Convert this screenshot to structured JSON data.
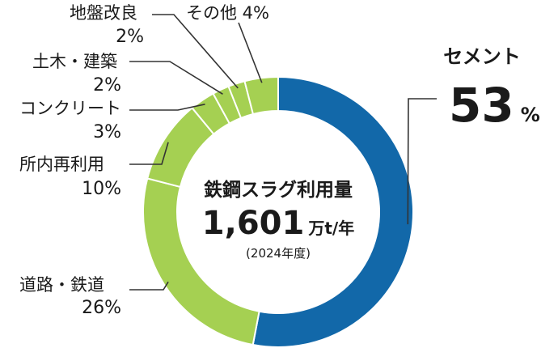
{
  "chart_data": {
    "type": "pie",
    "variant": "donut",
    "categories": [
      "セメント",
      "道路・鉄道",
      "所内再利用",
      "コンクリート",
      "土木・建築",
      "地盤改良",
      "その他"
    ],
    "values": [
      53,
      26,
      10,
      3,
      2,
      2,
      4
    ],
    "value_suffix": "%",
    "slice_colors": [
      "#1268a9",
      "#a5d052",
      "#a5d052",
      "#a5d052",
      "#a5d052",
      "#a5d052",
      "#a5d052"
    ],
    "center": {
      "title": "鉄鋼スラグ利用量",
      "value": "1,601",
      "unit": "万t/年",
      "note": "(2024年度)"
    },
    "hero_unit": "%"
  }
}
